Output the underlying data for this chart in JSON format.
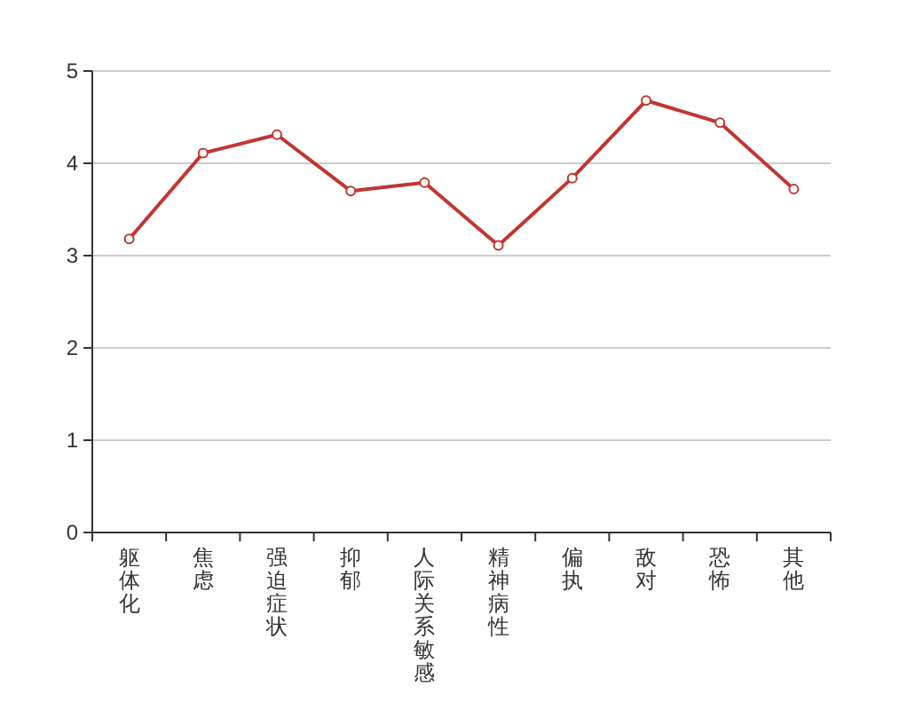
{
  "chart_data": {
    "type": "line",
    "categories": [
      "躯体化",
      "焦虑",
      "强迫症状",
      "抑郁",
      "人际关系敏感",
      "精神病性",
      "偏执",
      "敌对",
      "恐怖",
      "其他"
    ],
    "series": [
      {
        "color": "#c23531",
        "values": [
          3.18,
          4.11,
          4.31,
          3.7,
          3.79,
          3.11,
          3.84,
          4.68,
          4.44,
          3.72
        ]
      }
    ],
    "ylim": [
      0,
      5
    ],
    "yticks": [
      0,
      1,
      2,
      3,
      4,
      5
    ],
    "grid": "y",
    "marker": "circle",
    "line_style": "solid"
  }
}
